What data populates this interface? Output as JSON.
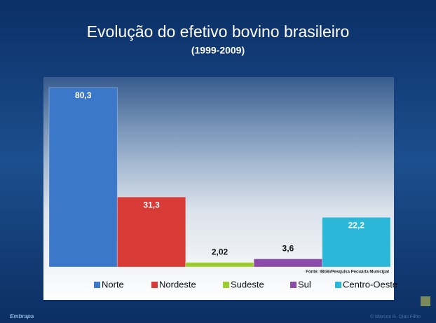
{
  "chart_data": {
    "type": "bar",
    "title": "Evolução do efetivo bovino brasileiro",
    "subtitle": "(1999-2009)",
    "categories": [
      "Norte",
      "Nordeste",
      "Sudeste",
      "Sul",
      "Centro-Oeste"
    ],
    "values": [
      80.3,
      31.3,
      2.02,
      3.6,
      22.2
    ],
    "value_labels": [
      "80,3",
      "31,3",
      "2,02",
      "3,6",
      "22,2"
    ],
    "colors": [
      "#3b78c9",
      "#d83b36",
      "#9ccd2f",
      "#8c4aa8",
      "#2bb8d8"
    ],
    "source": "Fonte: IBGE/Pesquisa Pecuária Municipal",
    "logo": "Embrapa",
    "credit": "© Marcos R. Dias Filho"
  }
}
